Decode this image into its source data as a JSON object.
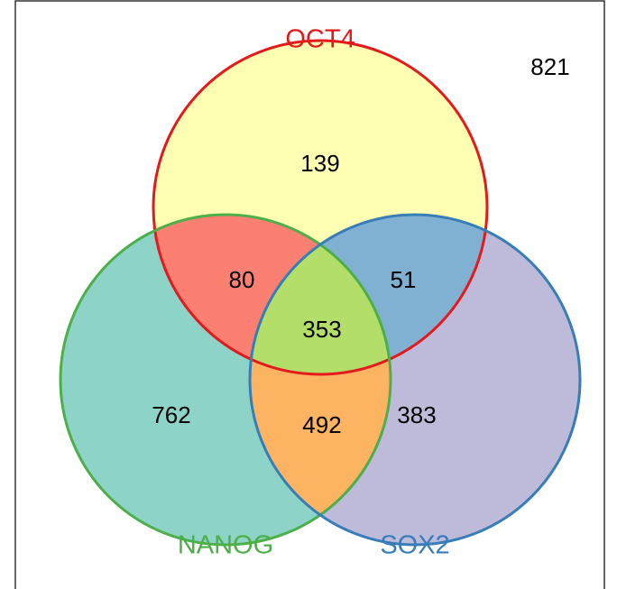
{
  "chart_data": {
    "type": "venn",
    "sets": [
      {
        "name": "OCT4",
        "color": "#e31a1c",
        "fill": "#ffffb3"
      },
      {
        "name": "NANOG",
        "color": "#4daf4a",
        "fill": "#8dd3c7"
      },
      {
        "name": "SOX2",
        "color": "#377eb8",
        "fill": "#bebada"
      }
    ],
    "regions": [
      {
        "sets": [
          0
        ],
        "value": 139,
        "color": "#ffffb3"
      },
      {
        "sets": [
          1
        ],
        "value": 762,
        "color": "#8dd3c7"
      },
      {
        "sets": [
          2
        ],
        "value": 383,
        "color": "#bebada"
      },
      {
        "sets": [
          0,
          1
        ],
        "value": 80,
        "color": "#fb8072"
      },
      {
        "sets": [
          0,
          2
        ],
        "value": 51,
        "color": "#80b1d3"
      },
      {
        "sets": [
          1,
          2
        ],
        "value": 492,
        "color": "#fdb462"
      },
      {
        "sets": [
          0,
          1,
          2
        ],
        "value": 353,
        "color": "#b3de69"
      }
    ],
    "outside": 821
  }
}
